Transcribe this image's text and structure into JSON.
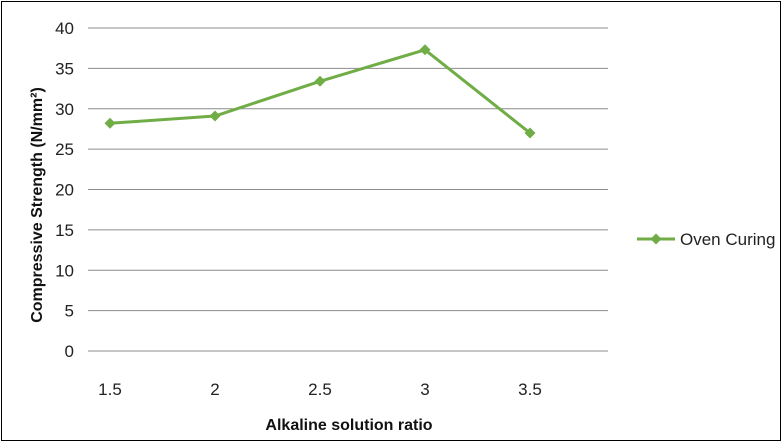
{
  "chart_data": {
    "type": "line",
    "title": "",
    "xlabel": "Alkaline solution ratio",
    "ylabel": "Compressive Strength (N/mm²)",
    "categories": [
      "1.5",
      "2",
      "2.5",
      "3",
      "3.5"
    ],
    "ylim": [
      0,
      40
    ],
    "yticks": [
      0,
      5,
      10,
      15,
      20,
      25,
      30,
      35,
      40
    ],
    "grid": true,
    "legend_position": "right",
    "series": [
      {
        "name": "Oven Curing",
        "color": "#70ad47",
        "marker": "diamond",
        "values": [
          28.2,
          29.1,
          33.4,
          37.3,
          27.0
        ]
      }
    ]
  }
}
